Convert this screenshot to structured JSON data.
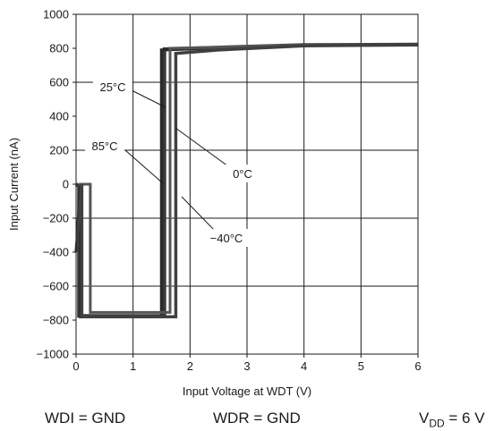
{
  "chart_data": {
    "type": "line",
    "title": "",
    "xlabel": "Input Voltage at WDT (V)",
    "ylabel": "Input Current (nA)",
    "xlim": [
      0,
      6
    ],
    "ylim": [
      -1000,
      1000
    ],
    "x_ticks": [
      "0",
      "1",
      "2",
      "3",
      "4",
      "5",
      "6"
    ],
    "y_ticks": [
      "1000",
      "800",
      "600",
      "400",
      "200",
      "0",
      "−200",
      "−400",
      "−600",
      "−800",
      "−1000"
    ],
    "grid": true,
    "series": [
      {
        "name": "25°C",
        "x": [
          0.0,
          0.05,
          0.05,
          1.55,
          1.55,
          2.5,
          4.0,
          6.0
        ],
        "y": [
          0,
          -10,
          -775,
          -775,
          795,
          805,
          820,
          822
        ]
      },
      {
        "name": "85°C",
        "x": [
          0.02,
          0.08,
          0.08,
          1.5,
          1.5,
          2.5,
          4.0,
          6.0
        ],
        "y": [
          -300,
          0,
          -780,
          -780,
          790,
          803,
          818,
          822
        ]
      },
      {
        "name": "0°C",
        "x": [
          0.05,
          0.25,
          0.25,
          1.65,
          1.65,
          2.5,
          4.0,
          6.0
        ],
        "y": [
          0,
          0,
          -755,
          -755,
          800,
          806,
          820,
          822
        ]
      },
      {
        "name": "−40°C",
        "x": [
          0.0,
          0.1,
          0.1,
          1.75,
          1.75,
          2.5,
          4.0,
          6.0
        ],
        "y": [
          -400,
          0,
          -780,
          -780,
          770,
          790,
          815,
          820
        ]
      }
    ],
    "annotations": [
      "25°C",
      "85°C",
      "0°C",
      "−40°C"
    ],
    "conditions": {
      "wdi": "WDI = GND",
      "wdr": "WDR = GND",
      "vdd_main": "V",
      "vdd_sub": "DD",
      "vdd_value": " = 6 V"
    }
  }
}
